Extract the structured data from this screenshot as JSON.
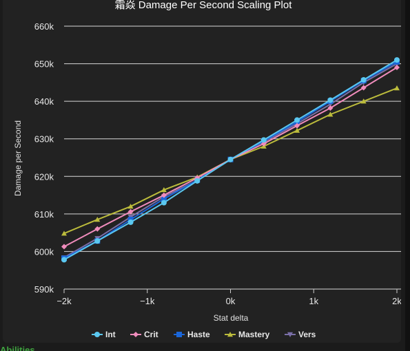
{
  "page": {
    "below_text": "Abilities"
  },
  "chart_data": {
    "type": "line",
    "title": "霜焱 Damage Per Second Scaling Plot",
    "xlabel": "Stat delta",
    "ylabel": "Damage per Second",
    "x": [
      -2000,
      -1600,
      -1200,
      -800,
      -400,
      0,
      400,
      800,
      1200,
      1600,
      2000
    ],
    "xlim": [
      -2000,
      2000
    ],
    "ylim": [
      590000,
      660000
    ],
    "x_ticks": [
      -2000,
      -1000,
      0,
      1000,
      2000
    ],
    "x_tick_labels": [
      "−2k",
      "−1k",
      "0k",
      "1k",
      "2k"
    ],
    "y_ticks": [
      590000,
      600000,
      610000,
      620000,
      630000,
      640000,
      650000,
      660000
    ],
    "y_tick_labels": [
      "590k",
      "600k",
      "610k",
      "620k",
      "630k",
      "640k",
      "650k",
      "660k"
    ],
    "grid": true,
    "legend_position": "bottom",
    "series": [
      {
        "name": "Int",
        "color": "#5bc8f0",
        "marker": "circle",
        "values": [
          597800,
          602800,
          607800,
          613000,
          618800,
          624500,
          629700,
          635000,
          640300,
          645700,
          651000
        ]
      },
      {
        "name": "Crit",
        "color": "#f08cbc",
        "marker": "diamond",
        "values": [
          601300,
          606000,
          610600,
          615000,
          619600,
          624500,
          628700,
          633500,
          638200,
          643600,
          649000
        ]
      },
      {
        "name": "Haste",
        "color": "#1a66d9",
        "marker": "square",
        "values": [
          598200,
          602800,
          608500,
          614000,
          619000,
          624500,
          629400,
          634500,
          640000,
          645500,
          650500
        ]
      },
      {
        "name": "Mastery",
        "color": "#bcbc3c",
        "marker": "triangle",
        "values": [
          604800,
          608500,
          612000,
          616400,
          619800,
          624500,
          628000,
          632200,
          636500,
          640000,
          643500
        ]
      },
      {
        "name": "Vers",
        "color": "#7a6fa8",
        "marker": "triangle-down",
        "values": [
          598400,
          603500,
          609200,
          614600,
          619000,
          624500,
          629200,
          634000,
          639200,
          645000,
          650000
        ]
      }
    ]
  }
}
